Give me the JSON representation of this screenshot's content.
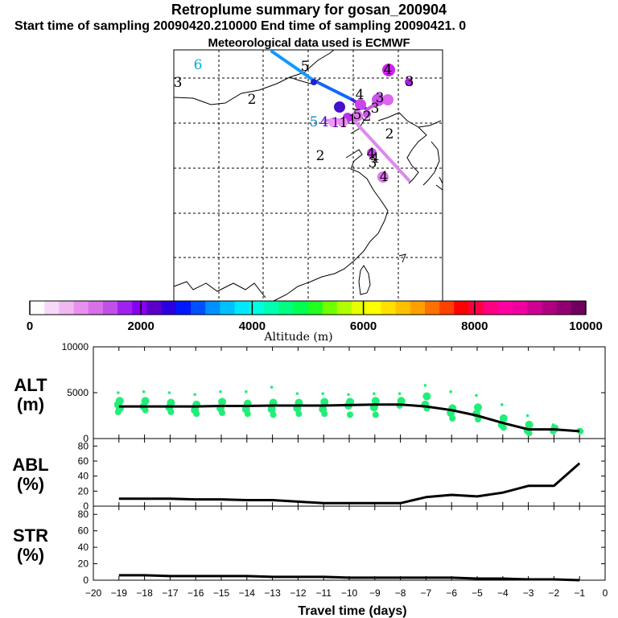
{
  "header": {
    "title": "Retroplume summary for gosan_200904",
    "sampling_line": "Start time of sampling 20090420.210000     End time of sampling 20090421.     0",
    "met_line": "Meteorological data used is ECMWF"
  },
  "colors": {
    "plume_green": "#22ee77",
    "line": "#000000",
    "trail_blue": "#1199ff",
    "trail_violet": "#dd88ee"
  },
  "map": {
    "labels": [
      {
        "text": "6",
        "color": "#00aadd"
      },
      {
        "text": "3",
        "color": "#000000"
      },
      {
        "text": "2",
        "color": "#000000"
      },
      {
        "text": "5",
        "color": "#000000"
      },
      {
        "text": "4",
        "color": "#000000"
      },
      {
        "text": "3",
        "color": "#000000"
      },
      {
        "text": "2",
        "color": "#000000"
      },
      {
        "text": "5",
        "color": "#0088cc"
      },
      {
        "text": "4",
        "color": "#4400cc"
      },
      {
        "text": "1",
        "color": "#5500aa"
      },
      {
        "text": "1",
        "color": "#000000"
      },
      {
        "text": "1",
        "color": "#000000"
      },
      {
        "text": "2",
        "color": "#000000"
      },
      {
        "text": "3",
        "color": "#000000"
      },
      {
        "text": "5",
        "color": "#000000"
      },
      {
        "text": "2",
        "color": "#000000"
      },
      {
        "text": "4",
        "color": "#000000"
      },
      {
        "text": "3",
        "color": "#000000"
      },
      {
        "text": "4",
        "color": "#000000"
      },
      {
        "text": "4",
        "color": "#000000"
      },
      {
        "text": "3",
        "color": "#000000"
      },
      {
        "text": "4",
        "color": "#000000"
      }
    ]
  },
  "colorbar": {
    "label": "Altitude (m)",
    "ticks": [
      "0",
      "2000",
      "4000",
      "6000",
      "8000",
      "10000"
    ],
    "colors": [
      "#ffffff",
      "#f8d8f8",
      "#f0b8f0",
      "#e890ee",
      "#d870e8",
      "#c050e8",
      "#a020f0",
      "#8800f0",
      "#5a00c8",
      "#2a00e0",
      "#0018ff",
      "#0050ff",
      "#0090ff",
      "#00c0ff",
      "#00e8ff",
      "#00ffe0",
      "#00ffb0",
      "#00ff80",
      "#00ff50",
      "#20ff20",
      "#70ff00",
      "#b0ff00",
      "#e8ff00",
      "#ffff00",
      "#ffe000",
      "#ffc000",
      "#ffa000",
      "#ff7000",
      "#ff4000",
      "#ff0000",
      "#ff0040",
      "#ff0080",
      "#ff00a0",
      "#f000a0",
      "#d00090",
      "#b00080",
      "#900070",
      "#700060"
    ]
  },
  "chart_data": [
    {
      "type": "line",
      "panel": "ALT",
      "ylabel": "ALT\n(m)",
      "ylabel_line1": "ALT",
      "ylabel_line2": "(m)",
      "xlim": [
        -20,
        0
      ],
      "ylim": [
        0,
        10000
      ],
      "yticks": [
        "10000",
        "5000",
        "0"
      ],
      "ytick_values": [
        10000,
        5000,
        0
      ],
      "x": [
        -19,
        -18,
        -17,
        -16,
        -15,
        -14,
        -13,
        -12,
        -11,
        -10,
        -9,
        -8,
        -7,
        -6,
        -5,
        -4,
        -3,
        -2,
        -1
      ],
      "series": [
        {
          "name": "median altitude",
          "values": [
            3500,
            3500,
            3500,
            3500,
            3550,
            3550,
            3600,
            3600,
            3600,
            3650,
            3700,
            3700,
            3500,
            3100,
            2500,
            1700,
            1000,
            1000,
            800
          ]
        }
      ],
      "scatter_clusters": [
        {
          "x": -19,
          "y": [
            5000,
            4100,
            3700,
            3300,
            2900
          ]
        },
        {
          "x": -18,
          "y": [
            5100,
            4100,
            3500,
            3100
          ]
        },
        {
          "x": -17,
          "y": [
            5000,
            3900,
            3400,
            2900
          ]
        },
        {
          "x": -16,
          "y": [
            4800,
            3700,
            3100,
            2700
          ]
        },
        {
          "x": -15,
          "y": [
            5100,
            4000,
            3300,
            2800
          ]
        },
        {
          "x": -14,
          "y": [
            5100,
            3800,
            3200,
            2700
          ]
        },
        {
          "x": -13,
          "y": [
            5600,
            3900,
            3200,
            2600
          ]
        },
        {
          "x": -12,
          "y": [
            4900,
            3900,
            3300,
            2700
          ]
        },
        {
          "x": -11,
          "y": [
            4900,
            4000,
            3200,
            2700
          ]
        },
        {
          "x": -10,
          "y": [
            4800,
            4000,
            3600,
            2600
          ]
        },
        {
          "x": -9,
          "y": [
            4900,
            4100,
            3400,
            2600
          ]
        },
        {
          "x": -8,
          "y": [
            4900,
            4100,
            3600
          ]
        },
        {
          "x": -7,
          "y": [
            5800,
            4600,
            3700,
            3300
          ]
        },
        {
          "x": -6,
          "y": [
            5100,
            3300,
            2800,
            2200
          ]
        },
        {
          "x": -5,
          "y": [
            4700,
            3400,
            2700,
            2100
          ]
        },
        {
          "x": -4,
          "y": [
            3700,
            2200,
            1500,
            1200
          ]
        },
        {
          "x": -3,
          "y": [
            2500,
            1500,
            900,
            600
          ]
        },
        {
          "x": -2,
          "y": [
            1500,
            1100,
            800
          ]
        },
        {
          "x": -1,
          "y": [
            1000,
            800
          ]
        }
      ]
    },
    {
      "type": "line",
      "panel": "ABL",
      "ylabel": "ABL\n(%)",
      "ylabel_line1": "ABL",
      "ylabel_line2": "(%)",
      "xlim": [
        -20,
        0
      ],
      "ylim": [
        0,
        90
      ],
      "yticks": [
        "80",
        "60",
        "40",
        "20",
        "0"
      ],
      "ytick_values": [
        80,
        60,
        40,
        20,
        0
      ],
      "x": [
        -19,
        -18,
        -17,
        -16,
        -15,
        -14,
        -13,
        -12,
        -11,
        -10,
        -9,
        -8,
        -7,
        -6,
        -5,
        -4,
        -3,
        -2,
        -1
      ],
      "series": [
        {
          "name": "ABL fraction",
          "values": [
            10,
            10,
            10,
            9,
            9,
            8,
            8,
            6,
            4,
            4,
            4,
            4,
            12,
            15,
            13,
            18,
            27,
            27,
            57
          ]
        }
      ]
    },
    {
      "type": "line",
      "panel": "STR",
      "ylabel": "STR\n(%)",
      "ylabel_line1": "STR",
      "ylabel_line2": "(%)",
      "xlim": [
        -20,
        0
      ],
      "ylim": [
        0,
        90
      ],
      "yticks": [
        "80",
        "60",
        "40",
        "20",
        "0"
      ],
      "ytick_values": [
        80,
        60,
        40,
        20,
        0
      ],
      "x": [
        -19,
        -18,
        -17,
        -16,
        -15,
        -14,
        -13,
        -12,
        -11,
        -10,
        -9,
        -8,
        -7,
        -6,
        -5,
        -4,
        -3,
        -2,
        -1
      ],
      "series": [
        {
          "name": "stratospheric fraction",
          "values": [
            6,
            6,
            5,
            5,
            5,
            5,
            4,
            4,
            4,
            3,
            3,
            3,
            3,
            3,
            2,
            2,
            1,
            1,
            0
          ]
        }
      ],
      "xlabel": "Travel time (days)",
      "xticks": [
        "−20",
        "−19",
        "−18",
        "−17",
        "−16",
        "−15",
        "−14",
        "−13",
        "−12",
        "−11",
        "−10",
        "−9",
        "−8",
        "−7",
        "−6",
        "−5",
        "−4",
        "−3",
        "−2",
        "−1",
        "0"
      ],
      "xtick_values": [
        -20,
        -19,
        -18,
        -17,
        -16,
        -15,
        -14,
        -13,
        -12,
        -11,
        -10,
        -9,
        -8,
        -7,
        -6,
        -5,
        -4,
        -3,
        -2,
        -1,
        0
      ]
    }
  ]
}
